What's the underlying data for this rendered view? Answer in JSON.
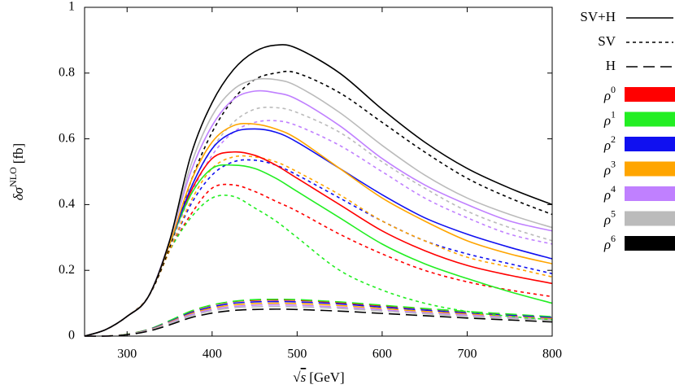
{
  "chart_data": {
    "type": "line",
    "x_label": {
      "radical": "√",
      "var": "s",
      "unit": "[GeV]"
    },
    "y_label": {
      "var": "δσ",
      "sup": "NLO",
      "unit": "[fb]"
    },
    "xlim": [
      250,
      800
    ],
    "xticks": [
      300,
      400,
      500,
      600,
      700,
      800
    ],
    "ylim": [
      0,
      1
    ],
    "yticks": [
      0,
      0.2,
      0.4,
      0.6,
      0.8,
      1
    ],
    "line_styles": [
      {
        "name": "SV+H",
        "dash": "solid"
      },
      {
        "name": "SV",
        "dash": "short"
      },
      {
        "name": "H",
        "dash": "long"
      }
    ],
    "color_legend": [
      {
        "symbol": "ρ",
        "power": "0",
        "color": "#ff0000"
      },
      {
        "symbol": "ρ",
        "power": "1",
        "color": "#22ee22"
      },
      {
        "symbol": "ρ",
        "power": "2",
        "color": "#1010f0"
      },
      {
        "symbol": "ρ",
        "power": "3",
        "color": "#ffa500"
      },
      {
        "symbol": "ρ",
        "power": "4",
        "color": "#c080ff"
      },
      {
        "symbol": "ρ",
        "power": "5",
        "color": "#bbbbbb"
      },
      {
        "symbol": "ρ",
        "power": "6",
        "color": "#000000"
      }
    ],
    "x": [
      250,
      275,
      300,
      325,
      350,
      375,
      400,
      425,
      450,
      475,
      500,
      550,
      600,
      650,
      700,
      750,
      800
    ],
    "series": [
      {
        "color": "#ff0000",
        "dash": "long",
        "values": [
          0,
          0,
          0.006,
          0.02,
          0.046,
          0.075,
          0.094,
          0.105,
          0.109,
          0.11,
          0.109,
          0.102,
          0.092,
          0.083,
          0.074,
          0.066,
          0.058
        ]
      },
      {
        "color": "#22ee22",
        "dash": "long",
        "values": [
          0,
          0,
          0.006,
          0.02,
          0.047,
          0.076,
          0.095,
          0.106,
          0.111,
          0.112,
          0.111,
          0.104,
          0.094,
          0.084,
          0.075,
          0.067,
          0.059
        ]
      },
      {
        "color": "#1010f0",
        "dash": "long",
        "values": [
          0,
          0,
          0.005,
          0.019,
          0.044,
          0.071,
          0.089,
          0.1,
          0.104,
          0.105,
          0.104,
          0.098,
          0.088,
          0.079,
          0.07,
          0.063,
          0.056
        ]
      },
      {
        "color": "#ffa500",
        "dash": "long",
        "values": [
          0,
          0,
          0.005,
          0.018,
          0.042,
          0.068,
          0.085,
          0.095,
          0.099,
          0.1,
          0.099,
          0.093,
          0.084,
          0.075,
          0.067,
          0.06,
          0.053
        ]
      },
      {
        "color": "#c080ff",
        "dash": "long",
        "values": [
          0,
          0,
          0.005,
          0.017,
          0.04,
          0.065,
          0.081,
          0.09,
          0.094,
          0.095,
          0.094,
          0.088,
          0.08,
          0.071,
          0.064,
          0.057,
          0.05
        ]
      },
      {
        "color": "#bbbbbb",
        "dash": "long",
        "values": [
          0,
          0,
          0.005,
          0.016,
          0.038,
          0.061,
          0.077,
          0.086,
          0.089,
          0.09,
          0.089,
          0.084,
          0.076,
          0.068,
          0.06,
          0.054,
          0.048
        ]
      },
      {
        "color": "#000000",
        "dash": "long",
        "values": [
          0,
          0,
          0.004,
          0.015,
          0.034,
          0.056,
          0.07,
          0.078,
          0.081,
          0.082,
          0.081,
          0.076,
          0.069,
          0.062,
          0.055,
          0.049,
          0.043
        ]
      },
      {
        "color": "#ff0000",
        "dash": "short",
        "values": [
          0,
          0.02,
          0.06,
          0.12,
          0.26,
          0.37,
          0.45,
          0.46,
          0.44,
          0.41,
          0.38,
          0.31,
          0.25,
          0.2,
          0.165,
          0.14,
          0.12
        ]
      },
      {
        "color": "#22ee22",
        "dash": "short",
        "values": [
          0,
          0.02,
          0.06,
          0.12,
          0.26,
          0.36,
          0.42,
          0.425,
          0.39,
          0.35,
          0.3,
          0.2,
          0.14,
          0.1,
          0.075,
          0.06,
          0.05
        ]
      },
      {
        "color": "#1010f0",
        "dash": "short",
        "values": [
          0,
          0.02,
          0.06,
          0.12,
          0.26,
          0.4,
          0.49,
          0.53,
          0.535,
          0.52,
          0.49,
          0.42,
          0.35,
          0.29,
          0.25,
          0.22,
          0.19
        ]
      },
      {
        "color": "#ffa500",
        "dash": "short",
        "values": [
          0,
          0.02,
          0.06,
          0.12,
          0.26,
          0.41,
          0.51,
          0.545,
          0.545,
          0.53,
          0.5,
          0.43,
          0.35,
          0.29,
          0.24,
          0.21,
          0.18
        ]
      },
      {
        "color": "#c080ff",
        "dash": "short",
        "values": [
          0,
          0.02,
          0.06,
          0.12,
          0.27,
          0.43,
          0.55,
          0.62,
          0.65,
          0.655,
          0.64,
          0.58,
          0.5,
          0.42,
          0.36,
          0.31,
          0.28
        ]
      },
      {
        "color": "#bbbbbb",
        "dash": "short",
        "values": [
          0,
          0.02,
          0.06,
          0.12,
          0.27,
          0.45,
          0.57,
          0.65,
          0.69,
          0.695,
          0.68,
          0.62,
          0.53,
          0.45,
          0.38,
          0.33,
          0.29
        ]
      },
      {
        "color": "#000000",
        "dash": "short",
        "values": [
          0,
          0.02,
          0.06,
          0.12,
          0.27,
          0.47,
          0.62,
          0.72,
          0.78,
          0.8,
          0.8,
          0.74,
          0.65,
          0.56,
          0.48,
          0.42,
          0.37
        ]
      },
      {
        "color": "#ff0000",
        "dash": "solid",
        "values": [
          0,
          0.02,
          0.06,
          0.12,
          0.28,
          0.44,
          0.54,
          0.56,
          0.55,
          0.52,
          0.48,
          0.4,
          0.32,
          0.26,
          0.215,
          0.185,
          0.16
        ]
      },
      {
        "color": "#22ee22",
        "dash": "solid",
        "values": [
          0,
          0.02,
          0.06,
          0.12,
          0.28,
          0.43,
          0.51,
          0.52,
          0.51,
          0.48,
          0.44,
          0.36,
          0.28,
          0.22,
          0.175,
          0.135,
          0.1
        ]
      },
      {
        "color": "#1010f0",
        "dash": "solid",
        "values": [
          0,
          0.02,
          0.06,
          0.12,
          0.28,
          0.45,
          0.57,
          0.62,
          0.63,
          0.62,
          0.59,
          0.51,
          0.43,
          0.36,
          0.31,
          0.27,
          0.235
        ]
      },
      {
        "color": "#ffa500",
        "dash": "solid",
        "values": [
          0,
          0.02,
          0.06,
          0.12,
          0.28,
          0.47,
          0.59,
          0.64,
          0.645,
          0.63,
          0.6,
          0.51,
          0.42,
          0.35,
          0.29,
          0.25,
          0.22
        ]
      },
      {
        "color": "#c080ff",
        "dash": "solid",
        "values": [
          0,
          0.02,
          0.06,
          0.12,
          0.29,
          0.5,
          0.64,
          0.72,
          0.745,
          0.74,
          0.72,
          0.64,
          0.54,
          0.46,
          0.4,
          0.35,
          0.32
        ]
      },
      {
        "color": "#bbbbbb",
        "dash": "solid",
        "values": [
          0,
          0.02,
          0.06,
          0.12,
          0.29,
          0.52,
          0.67,
          0.75,
          0.78,
          0.78,
          0.76,
          0.68,
          0.58,
          0.49,
          0.42,
          0.37,
          0.33
        ]
      },
      {
        "color": "#000000",
        "dash": "solid",
        "values": [
          0,
          0.02,
          0.06,
          0.12,
          0.29,
          0.55,
          0.71,
          0.81,
          0.865,
          0.885,
          0.875,
          0.8,
          0.69,
          0.59,
          0.51,
          0.45,
          0.4
        ]
      }
    ]
  }
}
